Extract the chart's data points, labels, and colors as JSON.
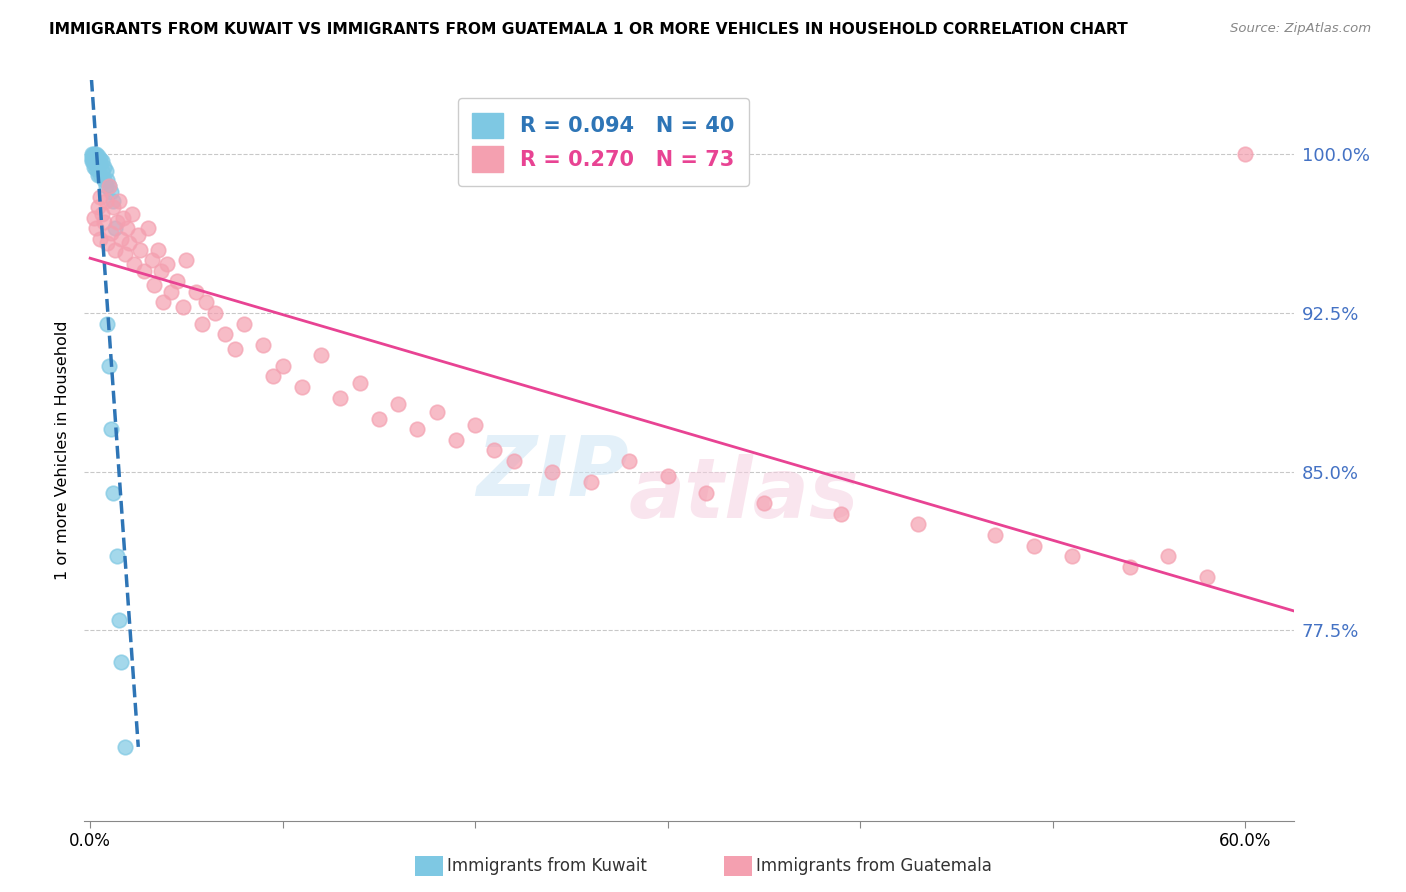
{
  "title": "IMMIGRANTS FROM KUWAIT VS IMMIGRANTS FROM GUATEMALA 1 OR MORE VEHICLES IN HOUSEHOLD CORRELATION CHART",
  "source": "Source: ZipAtlas.com",
  "ylabel": "1 or more Vehicles in Household",
  "ytick_labels": [
    "100.0%",
    "92.5%",
    "85.0%",
    "77.5%"
  ],
  "ytick_values": [
    1.0,
    0.925,
    0.85,
    0.775
  ],
  "ymin": 0.685,
  "ymax": 1.035,
  "xmin": -0.003,
  "xmax": 0.625,
  "kuwait_R": 0.094,
  "kuwait_N": 40,
  "guatemala_R": 0.27,
  "guatemala_N": 73,
  "kuwait_color": "#7ec8e3",
  "guatemala_color": "#f4a0b0",
  "kuwait_line_color": "#2e75b6",
  "guatemala_line_color": "#e84393",
  "kuwait_x": [
    0.001,
    0.001,
    0.001,
    0.001,
    0.002,
    0.002,
    0.002,
    0.002,
    0.002,
    0.003,
    0.003,
    0.003,
    0.003,
    0.003,
    0.004,
    0.004,
    0.004,
    0.004,
    0.005,
    0.005,
    0.005,
    0.006,
    0.006,
    0.007,
    0.007,
    0.008,
    0.008,
    0.009,
    0.009,
    0.01,
    0.01,
    0.011,
    0.011,
    0.012,
    0.012,
    0.013,
    0.014,
    0.015,
    0.016,
    0.018
  ],
  "kuwait_y": [
    1.0,
    0.999,
    0.998,
    0.997,
    1.0,
    0.999,
    0.998,
    0.996,
    0.994,
    1.0,
    0.999,
    0.997,
    0.995,
    0.993,
    0.999,
    0.997,
    0.995,
    0.99,
    0.998,
    0.996,
    0.99,
    0.997,
    0.992,
    0.994,
    0.988,
    0.992,
    0.985,
    0.988,
    0.92,
    0.985,
    0.9,
    0.982,
    0.87,
    0.978,
    0.84,
    0.965,
    0.81,
    0.78,
    0.76,
    0.72
  ],
  "guatemala_x": [
    0.002,
    0.003,
    0.004,
    0.005,
    0.005,
    0.006,
    0.007,
    0.008,
    0.009,
    0.01,
    0.011,
    0.012,
    0.013,
    0.014,
    0.015,
    0.016,
    0.017,
    0.018,
    0.019,
    0.02,
    0.022,
    0.023,
    0.025,
    0.026,
    0.028,
    0.03,
    0.032,
    0.033,
    0.035,
    0.037,
    0.038,
    0.04,
    0.042,
    0.045,
    0.048,
    0.05,
    0.055,
    0.058,
    0.06,
    0.065,
    0.07,
    0.075,
    0.08,
    0.09,
    0.095,
    0.1,
    0.11,
    0.12,
    0.13,
    0.14,
    0.15,
    0.16,
    0.17,
    0.18,
    0.19,
    0.2,
    0.21,
    0.22,
    0.24,
    0.26,
    0.28,
    0.3,
    0.32,
    0.35,
    0.39,
    0.43,
    0.47,
    0.49,
    0.51,
    0.54,
    0.56,
    0.58,
    0.6
  ],
  "guatemala_y": [
    0.97,
    0.965,
    0.975,
    0.98,
    0.96,
    0.972,
    0.968,
    0.978,
    0.958,
    0.985,
    0.963,
    0.975,
    0.955,
    0.968,
    0.978,
    0.96,
    0.97,
    0.953,
    0.965,
    0.958,
    0.972,
    0.948,
    0.962,
    0.955,
    0.945,
    0.965,
    0.95,
    0.938,
    0.955,
    0.945,
    0.93,
    0.948,
    0.935,
    0.94,
    0.928,
    0.95,
    0.935,
    0.92,
    0.93,
    0.925,
    0.915,
    0.908,
    0.92,
    0.91,
    0.895,
    0.9,
    0.89,
    0.905,
    0.885,
    0.892,
    0.875,
    0.882,
    0.87,
    0.878,
    0.865,
    0.872,
    0.86,
    0.855,
    0.85,
    0.845,
    0.855,
    0.848,
    0.84,
    0.835,
    0.83,
    0.825,
    0.82,
    0.815,
    0.81,
    0.805,
    0.81,
    0.8,
    1.0
  ]
}
